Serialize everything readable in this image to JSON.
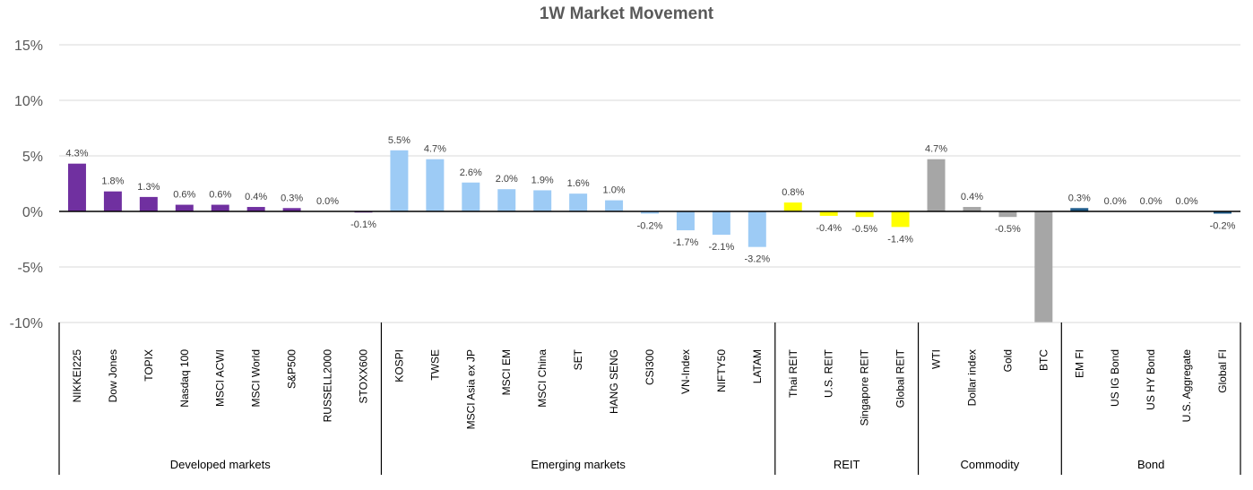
{
  "chart_data": {
    "type": "bar",
    "title": "1W Market Movement",
    "xlabel": "",
    "ylabel": "",
    "ylim": [
      -10,
      15
    ],
    "yticks": [
      -10,
      -5,
      0,
      5,
      10,
      15
    ],
    "ytick_labels": [
      "-10%",
      "-5%",
      "0%",
      "5%",
      "10%",
      "15%"
    ],
    "grid": true,
    "legend": "none",
    "groups": [
      {
        "name": "Developed  markets",
        "color": "#7030A0",
        "categories": [
          "NIKKEI225",
          "Dow Jones",
          "TOPIX",
          "Nasdaq 100",
          "MSCI ACWI",
          "MSCI World",
          "S&P500",
          "RUSSELL2000",
          "STOXX600"
        ],
        "values": [
          4.3,
          1.8,
          1.3,
          0.6,
          0.6,
          0.4,
          0.3,
          0.0,
          -0.1
        ],
        "labels": [
          "4.3%",
          "1.8%",
          "1.3%",
          "0.6%",
          "0.6%",
          "0.4%",
          "0.3%",
          "0.0%",
          "-0.1%"
        ]
      },
      {
        "name": "Emerging markets",
        "color": "#9DCBF5",
        "categories": [
          "KOSPI",
          "TWSE",
          "MSCI Asia ex JP",
          "MSCI EM",
          "MSCI China",
          "SET",
          "HANG SENG",
          "CSI300",
          "VN-Index",
          "NIFTY50",
          "LATAM"
        ],
        "values": [
          5.5,
          4.7,
          2.6,
          2.0,
          1.9,
          1.6,
          1.0,
          -0.2,
          -1.7,
          -2.1,
          -3.2
        ],
        "labels": [
          "5.5%",
          "4.7%",
          "2.6%",
          "2.0%",
          "1.9%",
          "1.6%",
          "1.0%",
          "-0.2%",
          "-1.7%",
          "-2.1%",
          "-3.2%"
        ]
      },
      {
        "name": "REIT",
        "color": "#FFFF00",
        "categories": [
          "Thai REIT",
          "U.S. REIT",
          "Singapore REIT",
          "Global REIT"
        ],
        "values": [
          0.8,
          -0.4,
          -0.5,
          -1.4
        ],
        "labels": [
          "0.8%",
          "-0.4%",
          "-0.5%",
          "-1.4%"
        ]
      },
      {
        "name": "Commodity",
        "color": "#A6A6A6",
        "categories": [
          "WTI",
          "Dollar index",
          "Gold",
          "BTC"
        ],
        "values": [
          4.7,
          0.4,
          -0.5,
          -10.2
        ],
        "labels": [
          "4.7%",
          "0.4%",
          "-0.5%",
          ""
        ]
      },
      {
        "name": "Bond",
        "color": "#1F5C8B",
        "categories": [
          "EM FI",
          "US IG Bond",
          "US HY Bond",
          "U.S. Aggregate",
          "Global FI"
        ],
        "values": [
          0.3,
          0.0,
          0.0,
          0.0,
          -0.2
        ],
        "labels": [
          "0.3%",
          "0.0%",
          "0.0%",
          "0.0%",
          "-0.2%"
        ]
      }
    ]
  }
}
